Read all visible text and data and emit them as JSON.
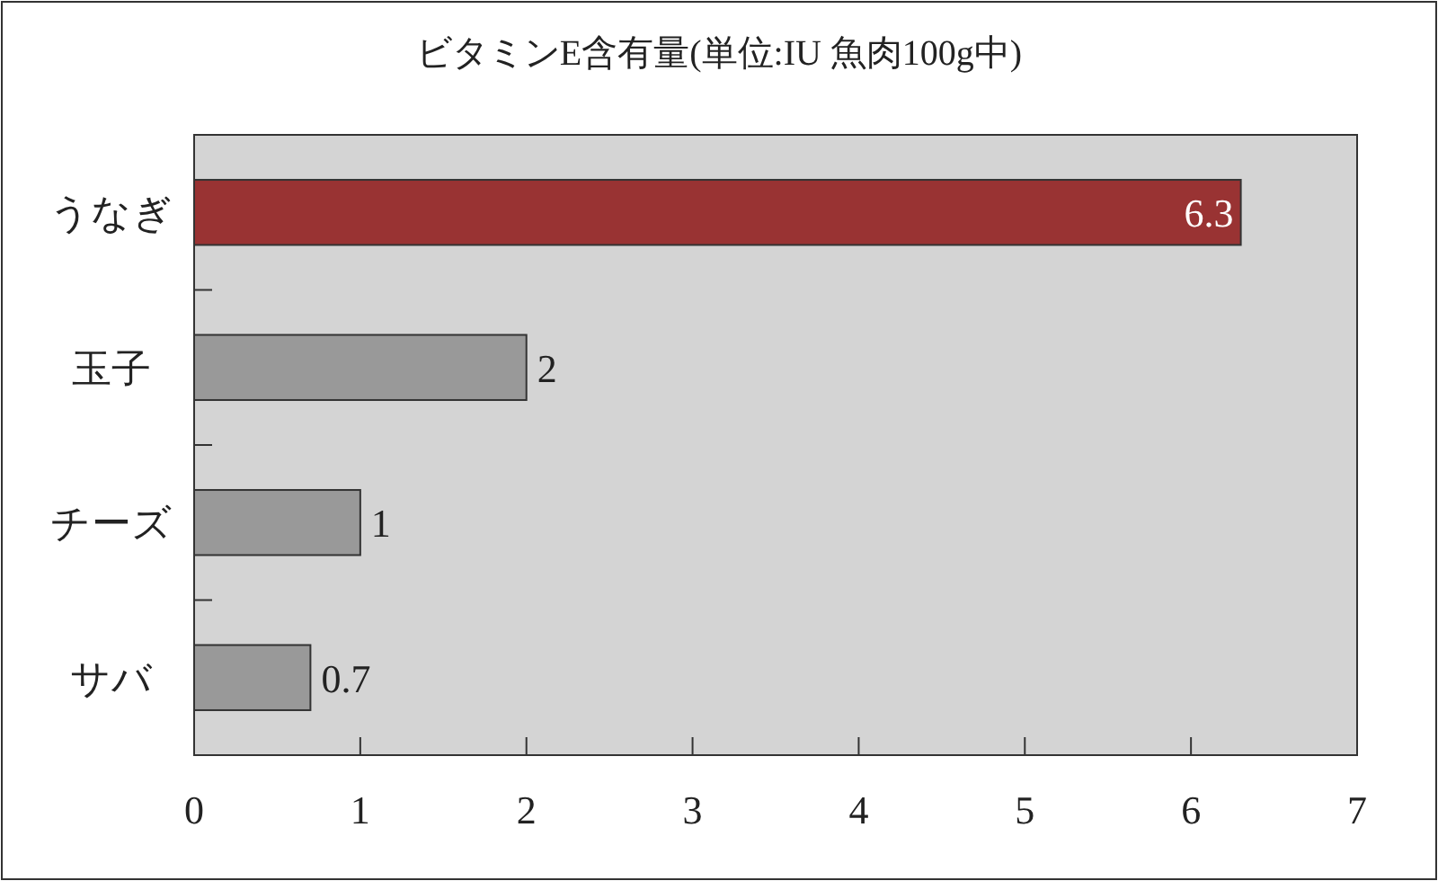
{
  "chart_data": {
    "type": "bar",
    "orientation": "horizontal",
    "title": "ビタミンE含有量(単位:IU 魚肉100g中)",
    "categories": [
      "うなぎ",
      "玉子",
      "チーズ",
      "サバ"
    ],
    "values": [
      6.3,
      2,
      1,
      0.7
    ],
    "colors": [
      "#993333",
      "#999999",
      "#999999",
      "#999999"
    ],
    "xlim": [
      0,
      7
    ],
    "xticks": [
      0,
      1,
      2,
      3,
      4,
      5,
      6,
      7
    ],
    "data_labels": true
  }
}
